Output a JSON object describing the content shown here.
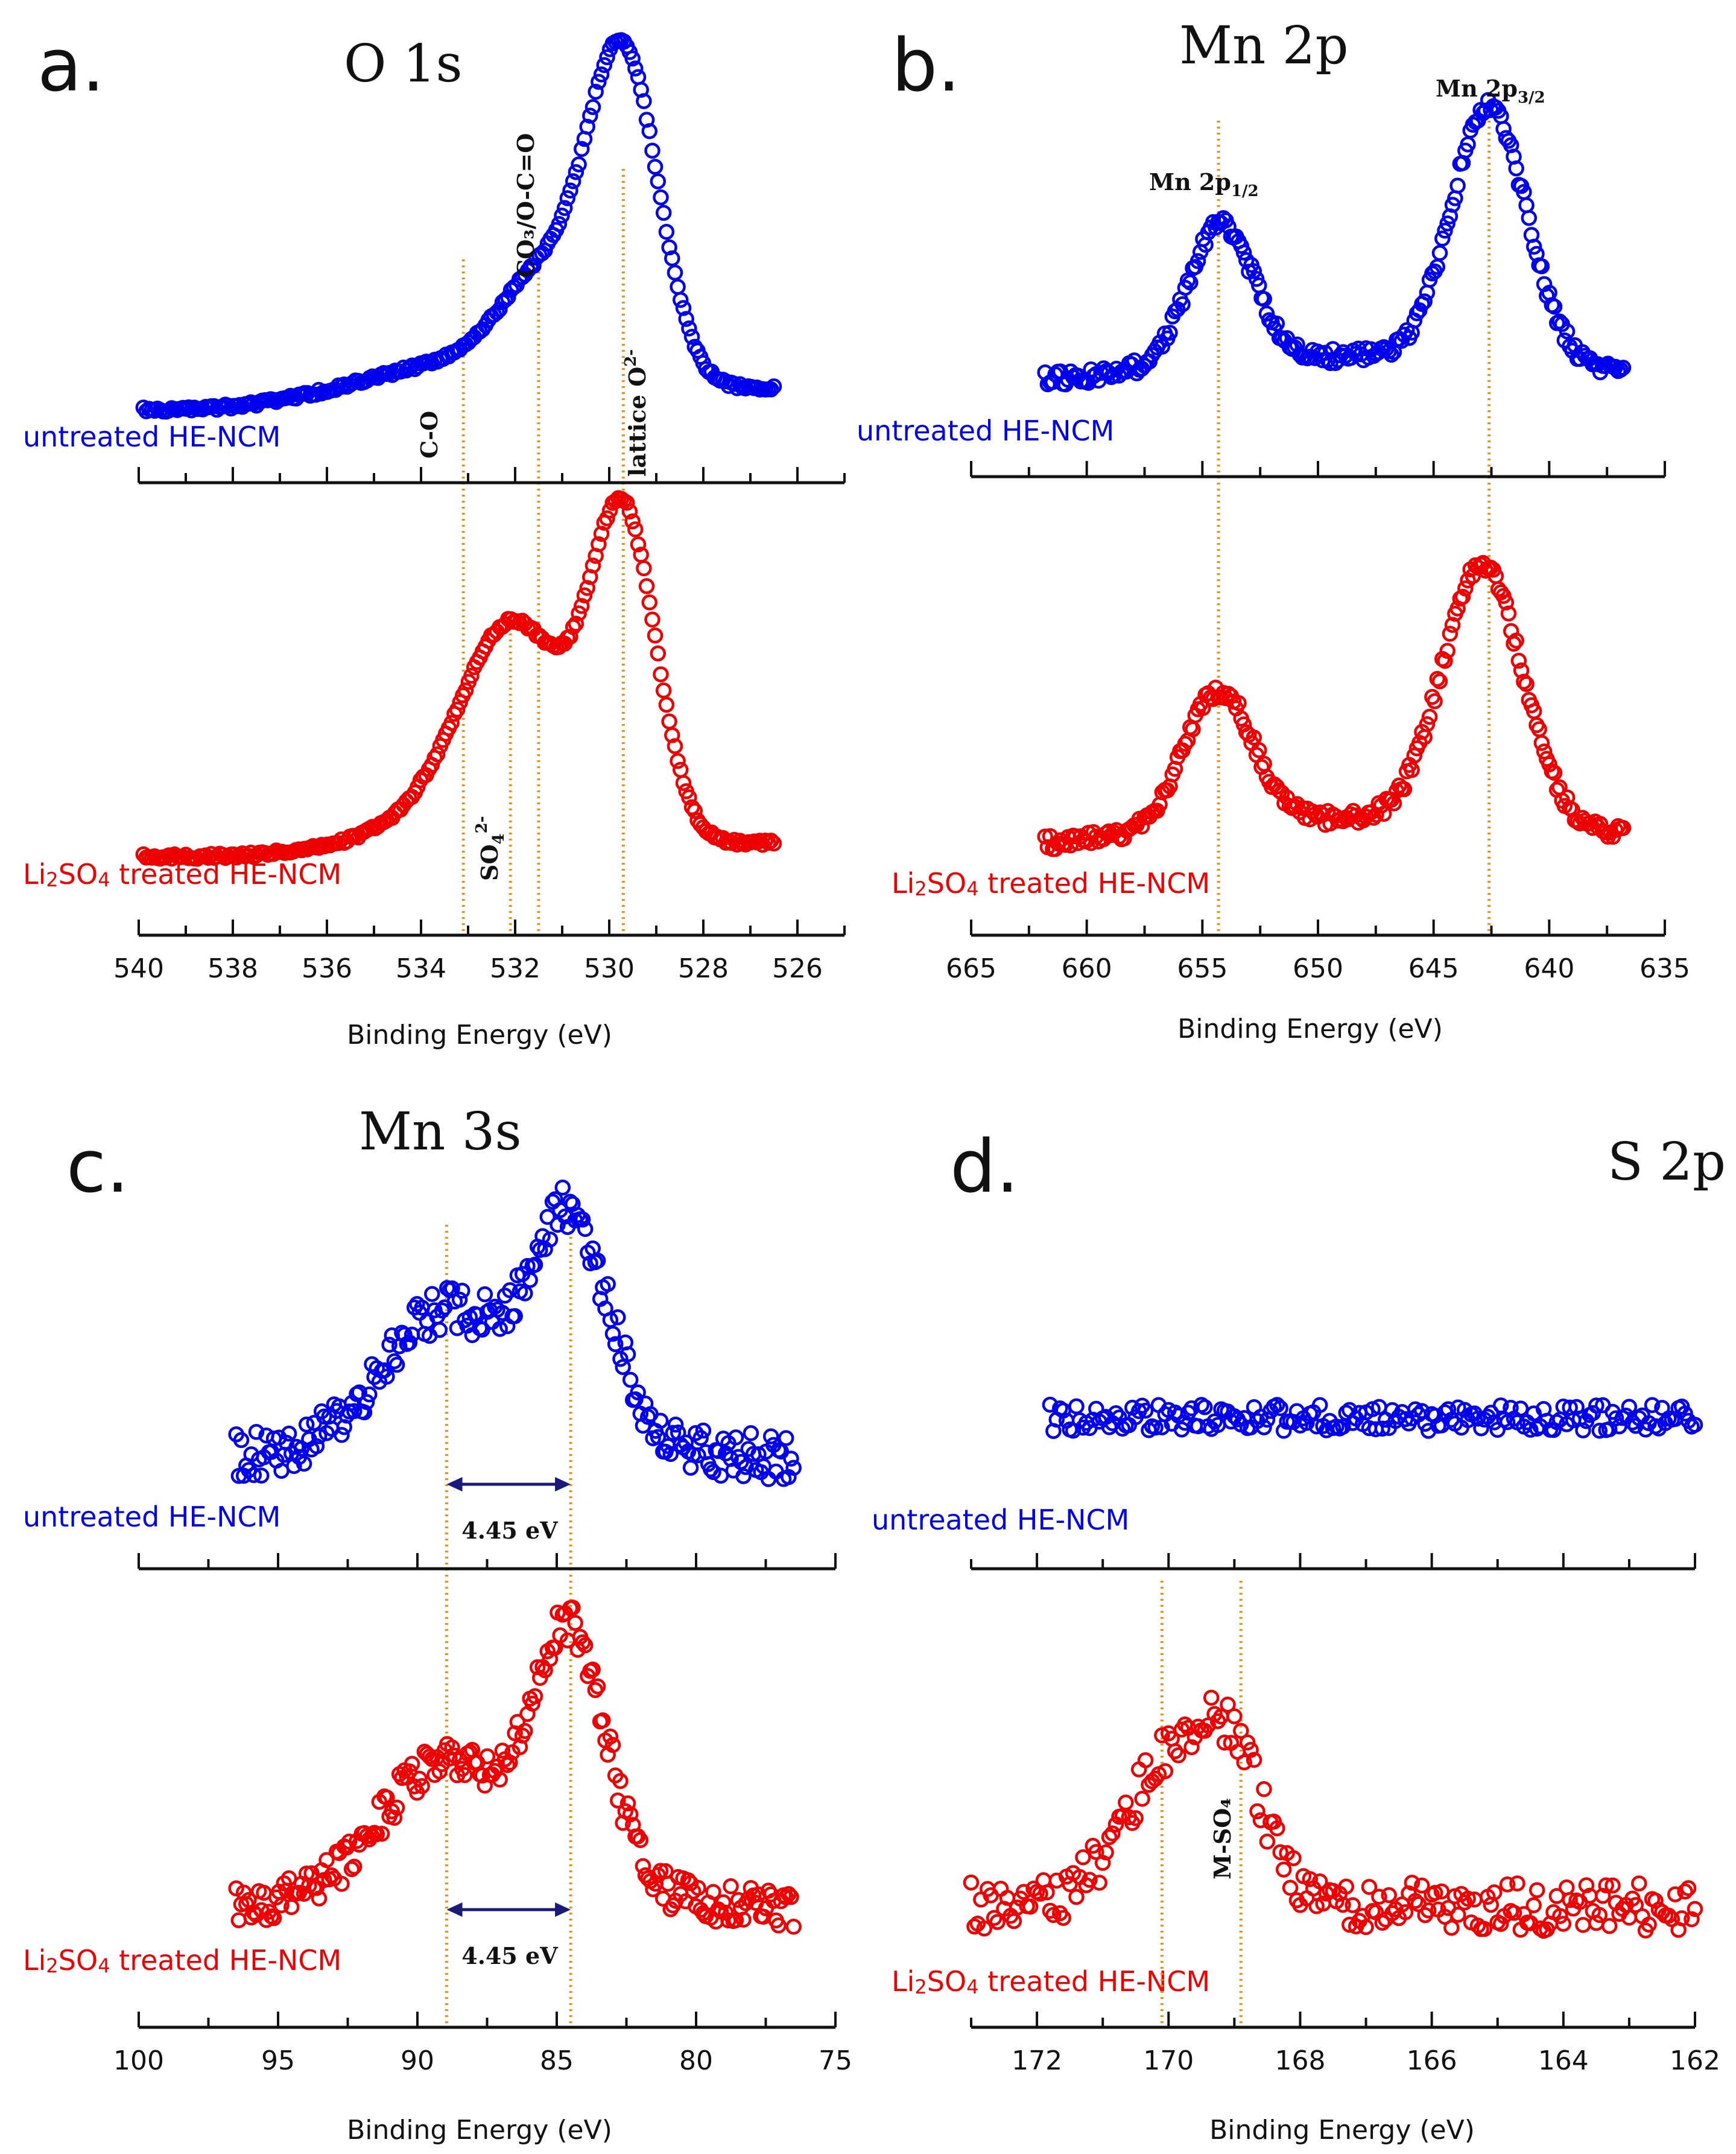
{
  "chart_data": [
    {
      "type": "scatter",
      "panel": "a.",
      "title": "O 1s",
      "xlabel": "Binding Energy (eV)",
      "xlim": [
        540,
        525
      ],
      "xticks": [
        540,
        538,
        536,
        534,
        532,
        530,
        528,
        526
      ],
      "series": [
        {
          "name": "untreated HE-NCM",
          "color": "#0000ee",
          "peaks": [
            {
              "center": 529.7,
              "height": 1.0,
              "width": 0.75
            },
            {
              "center": 531.4,
              "height": 0.28,
              "width": 0.9
            },
            {
              "center": 533.0,
              "height": 0.12,
              "width": 2.2
            }
          ],
          "x_range": [
            539.9,
            526.5
          ]
        },
        {
          "name": "Li2SO4 treated HE-NCM",
          "color": "#ee0000",
          "peaks": [
            {
              "center": 529.7,
              "height": 0.95,
              "width": 0.7
            },
            {
              "center": 532.0,
              "height": 0.6,
              "width": 1.1
            },
            {
              "center": 533.3,
              "height": 0.1,
              "width": 1.6
            }
          ],
          "x_range": [
            539.9,
            526.5
          ]
        }
      ],
      "reference_lines": [
        {
          "x": 533.1,
          "label": "C-O"
        },
        {
          "x": 531.5,
          "label": "CO3/O-C=O"
        },
        {
          "x": 529.7,
          "label": "lattice O2-"
        },
        {
          "x": 532.1,
          "label": "SO42-"
        }
      ],
      "annotations": {
        "co": "C-O",
        "co3": "CO₃/O-C=O",
        "lattice": "lattice O",
        "lattice_sup": "2-",
        "so4": "SO",
        "so4_sub": "4",
        "so4_sup": "2-"
      }
    },
    {
      "type": "scatter",
      "panel": "b.",
      "title": "Mn 2p",
      "xlabel": "Binding Energy (eV)",
      "xlim": [
        665,
        635
      ],
      "xticks": [
        665,
        660,
        655,
        650,
        645,
        640,
        635
      ],
      "series": [
        {
          "name": "untreated HE-NCM",
          "color": "#0000ee",
          "peaks": [
            {
              "center": 654.2,
              "height": 0.55,
              "width": 1.4
            },
            {
              "center": 642.6,
              "height": 1.0,
              "width": 1.6
            }
          ],
          "x_range": [
            661.8,
            636.8
          ]
        },
        {
          "name": "Li2SO4 treated HE-NCM",
          "color": "#ee0000",
          "peaks": [
            {
              "center": 654.3,
              "height": 0.5,
              "width": 1.5
            },
            {
              "center": 642.9,
              "height": 0.95,
              "width": 1.7
            }
          ],
          "x_range": [
            661.8,
            636.8
          ]
        }
      ],
      "reference_lines": [
        {
          "x": 654.3,
          "label": "Mn 2p1/2"
        },
        {
          "x": 642.6,
          "label": "Mn 2p3/2"
        }
      ],
      "annotations": {
        "p12": "Mn 2p",
        "p12_sub": "1/2",
        "p32": "Mn 2p",
        "p32_sub": "3/2"
      }
    },
    {
      "type": "scatter",
      "panel": "c.",
      "title": "Mn 3s",
      "xlabel": "Binding Energy (eV)",
      "xlim": [
        100,
        75
      ],
      "xticks": [
        100,
        95,
        90,
        85,
        80,
        75
      ],
      "series": [
        {
          "name": "untreated HE-NCM",
          "color": "#0000ee",
          "peaks": [
            {
              "center": 89.0,
              "height": 0.55,
              "width": 2.2
            },
            {
              "center": 84.5,
              "height": 0.9,
              "width": 1.4
            }
          ],
          "x_range": [
            96.5,
            76.5
          ]
        },
        {
          "name": "Li2SO4 treated HE-NCM",
          "color": "#ee0000",
          "peaks": [
            {
              "center": 89.0,
              "height": 0.5,
              "width": 2.2
            },
            {
              "center": 84.5,
              "height": 0.95,
              "width": 1.3
            }
          ],
          "x_range": [
            96.5,
            76.5
          ]
        }
      ],
      "reference_lines": [
        {
          "x": 88.95
        },
        {
          "x": 84.5
        }
      ],
      "annotations": {
        "split_top": "4.45 eV",
        "split_bottom": "4.45 eV"
      }
    },
    {
      "type": "scatter",
      "panel": "d.",
      "title": "S 2p",
      "xlabel": "Binding Energy (eV)",
      "xlim": [
        173,
        162
      ],
      "xticks": [
        172,
        170,
        168,
        166,
        164,
        162
      ],
      "series": [
        {
          "name": "untreated HE-NCM",
          "color": "#0000ee",
          "peaks": [],
          "x_range": [
            171.8,
            162
          ]
        },
        {
          "name": "Li2SO4 treated HE-NCM",
          "color": "#ee0000",
          "peaks": [
            {
              "center": 170.0,
              "height": 0.85,
              "width": 0.7
            },
            {
              "center": 169.0,
              "height": 0.7,
              "width": 0.5
            }
          ],
          "x_range": [
            173,
            162
          ]
        }
      ],
      "reference_lines": [
        {
          "x": 170.1
        },
        {
          "x": 168.9
        }
      ],
      "annotations": {
        "mso4": "M-SO₄"
      }
    }
  ]
}
